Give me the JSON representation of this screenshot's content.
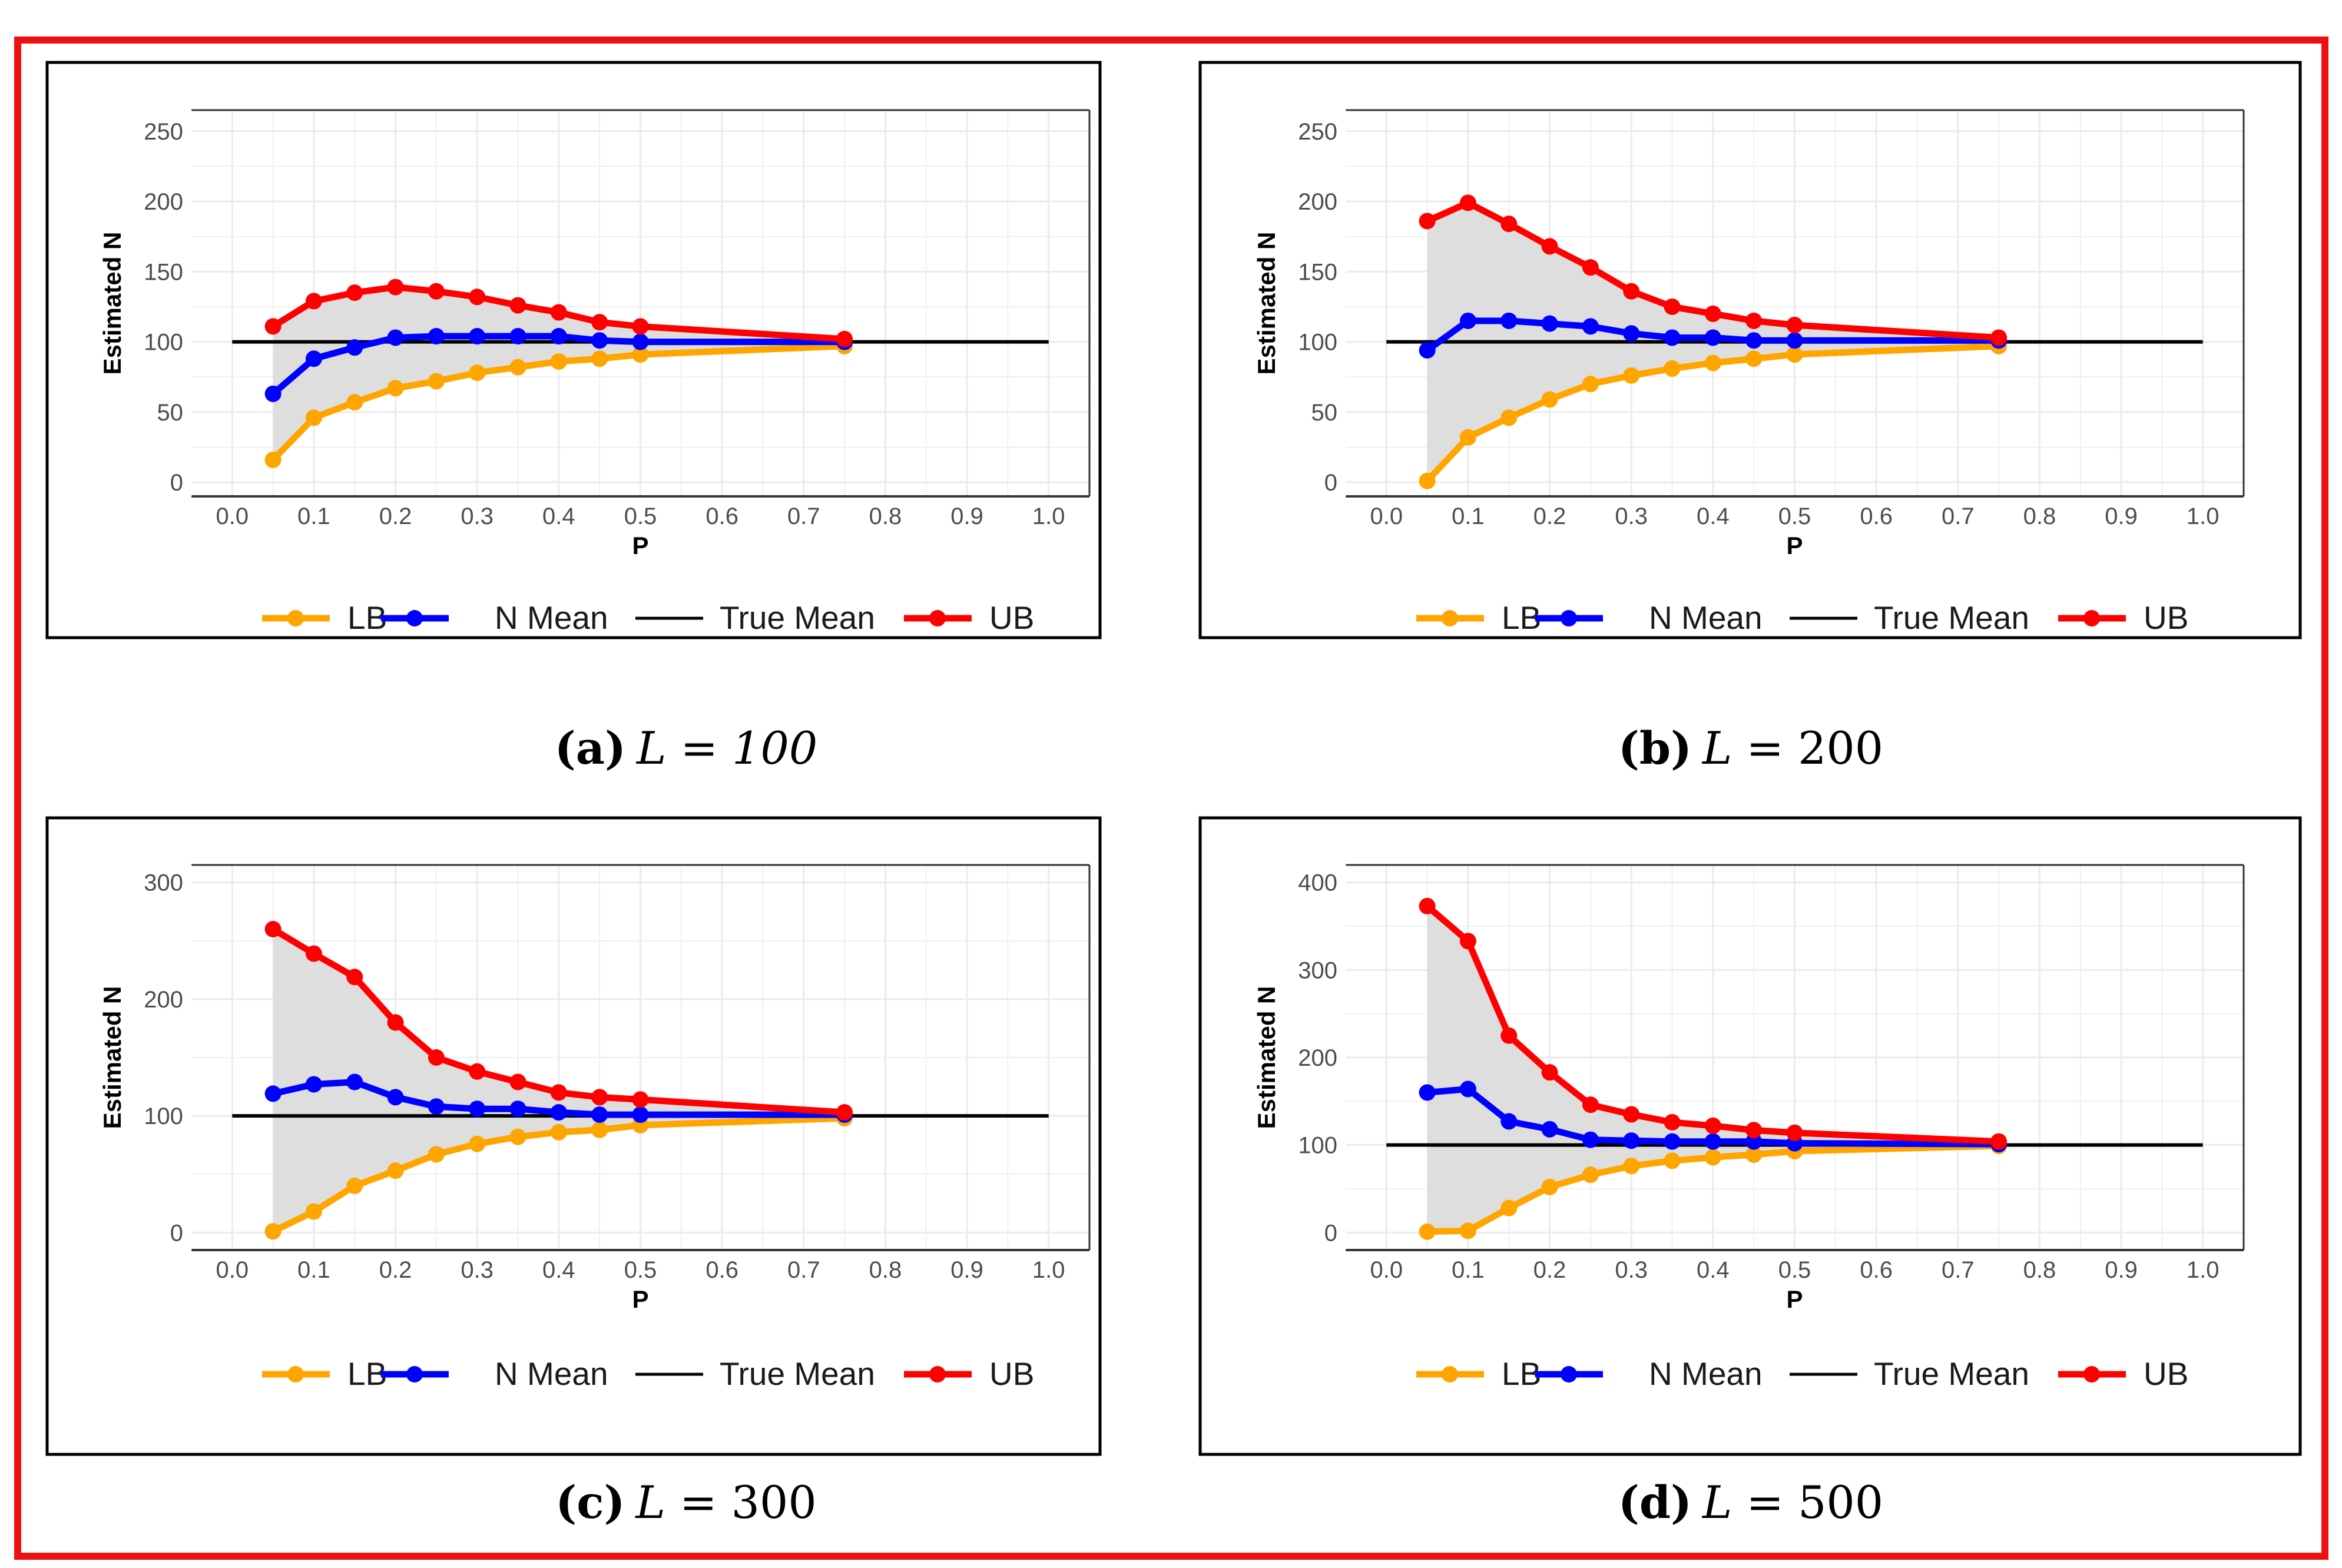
{
  "colors": {
    "frame": "#ee1111",
    "lb": "#ffa500",
    "mean": "#0000ff",
    "true_mean": "#000000",
    "ub": "#ff0000",
    "ribbon": "#dedede",
    "grid": "#ebebeb"
  },
  "legend": {
    "lb": "LB",
    "mean": "N Mean",
    "true_mean": "True Mean",
    "ub": "UB"
  },
  "chart_data": [
    {
      "type": "line",
      "caption": {
        "letter": "(a)",
        "var": "L",
        "eq": "=",
        "value": "100"
      },
      "xlabel": "P",
      "ylabel": "Estimated N",
      "xlim": [
        -0.05,
        1.05
      ],
      "ylim": [
        -10,
        265
      ],
      "xticks": [
        "0.0",
        "0.1",
        "0.2",
        "0.3",
        "0.4",
        "0.5",
        "0.6",
        "0.7",
        "0.8",
        "0.9",
        "1.0"
      ],
      "yticks": [
        "0",
        "50",
        "100",
        "150",
        "200",
        "250"
      ],
      "true_mean": 100,
      "x": [
        0.05,
        0.1,
        0.15,
        0.2,
        0.25,
        0.3,
        0.35,
        0.4,
        0.45,
        0.5,
        0.75
      ],
      "series": [
        {
          "name": "LB",
          "values": [
            16,
            46,
            57,
            67,
            72,
            78,
            82,
            86,
            88,
            91,
            97
          ]
        },
        {
          "name": "N Mean",
          "values": [
            63,
            88,
            96,
            103,
            104,
            104,
            104,
            104,
            101,
            100,
            100
          ]
        },
        {
          "name": "UB",
          "values": [
            111,
            129,
            135,
            139,
            136,
            132,
            126,
            121,
            114,
            111,
            102
          ]
        }
      ]
    },
    {
      "type": "line",
      "caption": {
        "letter": "(b)",
        "var": "L",
        "eq": "=",
        "value": "200"
      },
      "xlabel": "P",
      "ylabel": "Estimated N",
      "xlim": [
        -0.05,
        1.05
      ],
      "ylim": [
        -10,
        265
      ],
      "xticks": [
        "0.0",
        "0.1",
        "0.2",
        "0.3",
        "0.4",
        "0.5",
        "0.6",
        "0.7",
        "0.8",
        "0.9",
        "1.0"
      ],
      "yticks": [
        "0",
        "50",
        "100",
        "150",
        "200",
        "250"
      ],
      "true_mean": 100,
      "x": [
        0.05,
        0.1,
        0.15,
        0.2,
        0.25,
        0.3,
        0.35,
        0.4,
        0.45,
        0.5,
        0.75
      ],
      "series": [
        {
          "name": "LB",
          "values": [
            1,
            32,
            46,
            59,
            70,
            76,
            81,
            85,
            88,
            91,
            97
          ]
        },
        {
          "name": "N Mean",
          "values": [
            94,
            115,
            115,
            113,
            111,
            106,
            103,
            103,
            101,
            101,
            101
          ]
        },
        {
          "name": "UB",
          "values": [
            186,
            199,
            184,
            168,
            153,
            136,
            125,
            120,
            115,
            112,
            103
          ]
        }
      ]
    },
    {
      "type": "line",
      "caption": {
        "letter": "(c)",
        "var": "L",
        "eq": "=",
        "value": "300"
      },
      "xlabel": "P",
      "ylabel": "Estimated N",
      "xlim": [
        -0.05,
        1.05
      ],
      "ylim": [
        -15,
        315
      ],
      "xticks": [
        "0.0",
        "0.1",
        "0.2",
        "0.3",
        "0.4",
        "0.5",
        "0.6",
        "0.7",
        "0.8",
        "0.9",
        "1.0"
      ],
      "yticks": [
        "0",
        "100",
        "200",
        "300"
      ],
      "true_mean": 100,
      "x": [
        0.05,
        0.1,
        0.15,
        0.2,
        0.25,
        0.3,
        0.35,
        0.4,
        0.45,
        0.5,
        0.75
      ],
      "series": [
        {
          "name": "LB",
          "values": [
            1,
            18,
            40,
            53,
            67,
            76,
            82,
            86,
            88,
            92,
            98
          ]
        },
        {
          "name": "N Mean",
          "values": [
            119,
            127,
            129,
            116,
            108,
            106,
            106,
            103,
            101,
            101,
            101
          ]
        },
        {
          "name": "UB",
          "values": [
            260,
            239,
            219,
            180,
            150,
            138,
            129,
            120,
            116,
            114,
            103
          ]
        }
      ]
    },
    {
      "type": "line",
      "caption": {
        "letter": "(d)",
        "var": "L",
        "eq": "=",
        "value": "500"
      },
      "xlabel": "P",
      "ylabel": "Estimated N",
      "xlim": [
        -0.05,
        1.05
      ],
      "ylim": [
        -20,
        420
      ],
      "xticks": [
        "0.0",
        "0.1",
        "0.2",
        "0.3",
        "0.4",
        "0.5",
        "0.6",
        "0.7",
        "0.8",
        "0.9",
        "1.0"
      ],
      "yticks": [
        "0",
        "100",
        "200",
        "300",
        "400"
      ],
      "true_mean": 100,
      "x": [
        0.05,
        0.1,
        0.15,
        0.2,
        0.25,
        0.3,
        0.35,
        0.4,
        0.45,
        0.5,
        0.75
      ],
      "series": [
        {
          "name": "LB",
          "values": [
            1,
            2,
            28,
            52,
            66,
            76,
            82,
            86,
            89,
            93,
            99
          ]
        },
        {
          "name": "N Mean",
          "values": [
            160,
            164,
            127,
            118,
            106,
            105,
            104,
            104,
            104,
            102,
            101
          ]
        },
        {
          "name": "UB",
          "values": [
            373,
            333,
            225,
            183,
            146,
            135,
            126,
            122,
            117,
            114,
            104
          ]
        }
      ]
    }
  ]
}
